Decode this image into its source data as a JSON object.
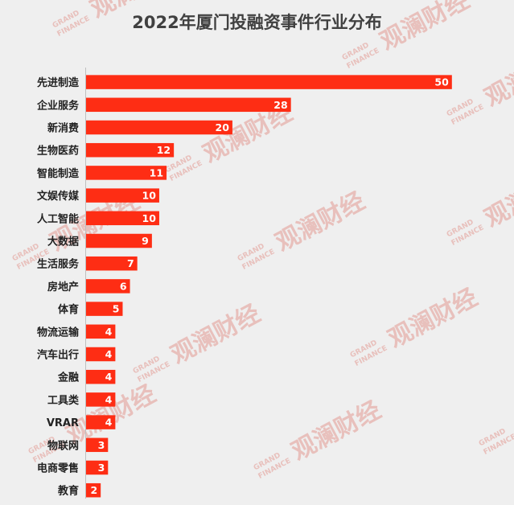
{
  "chart_data": {
    "type": "bar",
    "orientation": "horizontal",
    "title": "2022年厦门投融资事件行业分布",
    "categories": [
      "先进制造",
      "企业服务",
      "新消费",
      "生物医药",
      "智能制造",
      "文娱传媒",
      "人工智能",
      "大数据",
      "生活服务",
      "房地产",
      "体育",
      "物流运输",
      "汽车出行",
      "金融",
      "工具类",
      "VRAR",
      "物联网",
      "电商零售",
      "教育"
    ],
    "values": [
      50,
      28,
      20,
      12,
      11,
      10,
      10,
      9,
      7,
      6,
      5,
      4,
      4,
      4,
      4,
      4,
      3,
      3,
      2
    ],
    "xlim": [
      0,
      52
    ],
    "grid": false,
    "legend": "none",
    "bar_color": "#fe2d14"
  },
  "watermark": {
    "text_cn": "观澜财经",
    "text_en_1": "GRAND",
    "text_en_2": "FINANCE",
    "color": "#e8c0bc"
  }
}
